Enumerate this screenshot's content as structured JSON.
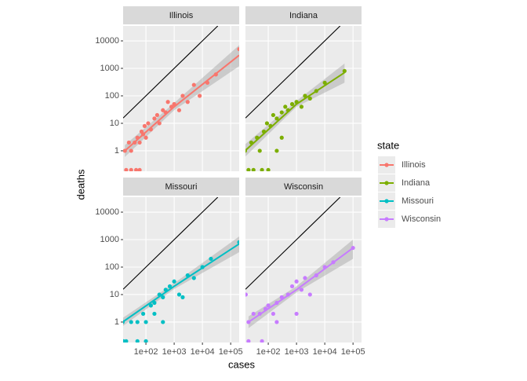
{
  "chart_data": {
    "type": "scatter",
    "xlabel": "cases",
    "ylabel": "deaths",
    "legend_title": "state",
    "log_x": true,
    "log_y": true,
    "grid": true,
    "xlim": [
      15.6,
      200000
    ],
    "ylim": [
      0.18,
      35000
    ],
    "xticks": [
      {
        "value": 100,
        "label": "1e+02"
      },
      {
        "value": 1000,
        "label": "1e+03"
      },
      {
        "value": 10000,
        "label": "1e+04"
      },
      {
        "value": 100000,
        "label": "1e+05"
      }
    ],
    "yticks": [
      1,
      10,
      100,
      1000,
      10000
    ],
    "reference": {
      "x": [
        15.6,
        35000
      ],
      "y": [
        15.6,
        35000
      ]
    },
    "facets": [
      {
        "name": "Illinois",
        "color": "#F8766D",
        "x": [
          18,
          25,
          30,
          40,
          50,
          60,
          70,
          80,
          90,
          100,
          120,
          150,
          200,
          250,
          300,
          400,
          500,
          600,
          800,
          1000,
          1500,
          2000,
          3000,
          5000,
          8000,
          15000,
          30000,
          200000,
          20,
          30,
          45,
          60
        ],
        "y": [
          1,
          2,
          1,
          2,
          3,
          2,
          5,
          4,
          8,
          3,
          10,
          6,
          15,
          20,
          10,
          30,
          25,
          60,
          40,
          50,
          30,
          100,
          60,
          250,
          100,
          300,
          600,
          5000,
          0.2,
          0.2,
          0.2,
          0.2
        ],
        "fit": {
          "x": [
            18,
            1000,
            200000
          ],
          "y": [
            1,
            40,
            3000
          ],
          "lower": [
            0.6,
            30,
            1200
          ],
          "upper": [
            1.6,
            55,
            7000
          ]
        }
      },
      {
        "name": "Indiana",
        "color": "#7CAE00",
        "x": [
          15,
          25,
          40,
          50,
          70,
          90,
          120,
          150,
          200,
          300,
          400,
          500,
          700,
          1000,
          1500,
          2000,
          3000,
          5000,
          10000,
          50000,
          20,
          30,
          60,
          100,
          300,
          200
        ],
        "y": [
          1,
          2,
          3,
          1,
          5,
          10,
          8,
          20,
          15,
          25,
          40,
          30,
          50,
          60,
          40,
          100,
          80,
          150,
          300,
          800,
          0.2,
          0.2,
          0.2,
          0.2,
          3,
          1
        ],
        "fit": {
          "x": [
            15,
            1000,
            50000
          ],
          "y": [
            1,
            50,
            700
          ],
          "lower": [
            0.6,
            40,
            300
          ],
          "upper": [
            1.7,
            65,
            1500
          ]
        }
      },
      {
        "name": "Missouri",
        "color": "#00BFC4",
        "x": [
          15,
          30,
          50,
          80,
          100,
          150,
          200,
          300,
          400,
          500,
          700,
          1000,
          1500,
          2000,
          3000,
          5000,
          10000,
          20000,
          200000,
          16,
          20,
          50,
          100,
          200,
          400
        ],
        "y": [
          1,
          1,
          1,
          2,
          1,
          4,
          5,
          10,
          8,
          15,
          20,
          30,
          10,
          8,
          50,
          40,
          100,
          200,
          800,
          0.2,
          0.2,
          0.2,
          0.2,
          2,
          1
        ],
        "fit": {
          "x": [
            15,
            1000,
            200000
          ],
          "y": [
            1,
            20,
            700
          ],
          "lower": [
            0.7,
            16,
            350
          ],
          "upper": [
            1.4,
            26,
            1300
          ]
        }
      },
      {
        "name": "Wisconsin",
        "color": "#C77CFF",
        "x": [
          16,
          20,
          30,
          50,
          80,
          100,
          150,
          200,
          300,
          500,
          700,
          1000,
          1500,
          2000,
          3000,
          5000,
          10000,
          20000,
          100000,
          20,
          60,
          200,
          1000
        ],
        "y": [
          10,
          1,
          2,
          2,
          3,
          4,
          2,
          5,
          8,
          10,
          20,
          30,
          15,
          40,
          10,
          50,
          100,
          150,
          500,
          0.2,
          0.2,
          1,
          2
        ],
        "fit": {
          "x": [
            20,
            1000,
            100000
          ],
          "y": [
            1,
            15,
            500
          ],
          "lower": [
            0.6,
            12,
            200
          ],
          "upper": [
            1.6,
            20,
            1000
          ]
        }
      }
    ]
  }
}
